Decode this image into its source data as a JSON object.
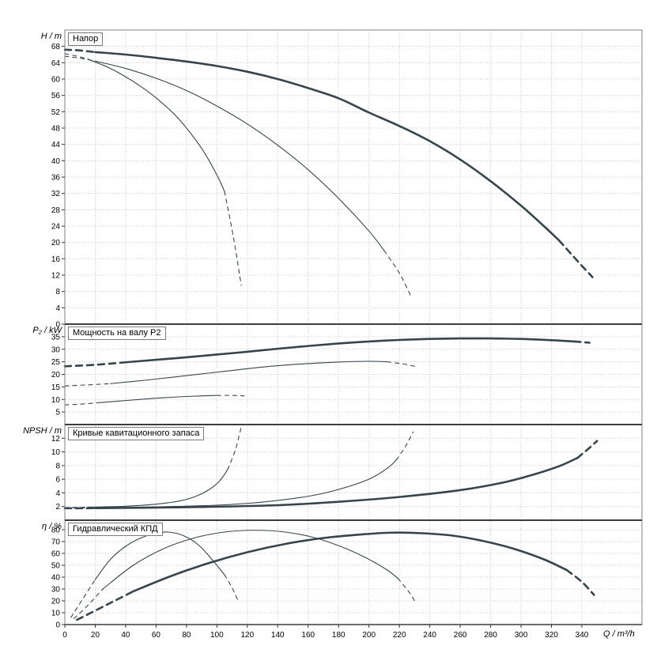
{
  "colors": {
    "curve": "#36454c",
    "grid": "#c9c9c9",
    "axis_border": "#808080",
    "divider": "#3c3c3c",
    "tick": "#333333",
    "text": "#000000",
    "background": "#ffffff"
  },
  "x_axis": {
    "label": "Q / m³/h",
    "lim": [
      0,
      380
    ],
    "ticks": [
      0,
      20,
      40,
      60,
      80,
      100,
      120,
      140,
      160,
      180,
      200,
      220,
      240,
      260,
      280,
      300,
      320,
      340
    ]
  },
  "chart_data": [
    {
      "type": "line",
      "title": "Напор",
      "ylabel": "H / m",
      "ylim": [
        0,
        72
      ],
      "yticks": [
        0,
        4,
        8,
        12,
        16,
        20,
        24,
        28,
        32,
        36,
        40,
        44,
        48,
        52,
        56,
        60,
        64,
        68
      ],
      "grid": true,
      "series": [
        {
          "name": "head-curve-3-lead",
          "style": "thick-dash",
          "points": [
            [
              0,
              67.2
            ],
            [
              10,
              67.0
            ],
            [
              20,
              66.6
            ]
          ]
        },
        {
          "name": "head-curve-3",
          "style": "thick",
          "points": [
            [
              20,
              66.6
            ],
            [
              40,
              66.0
            ],
            [
              60,
              65.2
            ],
            [
              80,
              64.3
            ],
            [
              100,
              63.2
            ],
            [
              120,
              61.8
            ],
            [
              140,
              60.0
            ],
            [
              160,
              57.8
            ],
            [
              180,
              55.3
            ],
            [
              200,
              51.8
            ],
            [
              220,
              48.5
            ],
            [
              240,
              44.8
            ],
            [
              260,
              40.3
            ],
            [
              280,
              35.0
            ],
            [
              300,
              29.0
            ],
            [
              315,
              24.0
            ],
            [
              325,
              20.5
            ]
          ]
        },
        {
          "name": "head-curve-3-tail",
          "style": "thick-dash",
          "points": [
            [
              325,
              20.5
            ],
            [
              337,
              15.5
            ],
            [
              347,
              11.5
            ]
          ]
        },
        {
          "name": "head-curve-2-lead",
          "style": "thin-dash",
          "points": [
            [
              0,
              65.6
            ],
            [
              10,
              65.1
            ],
            [
              20,
              64.4
            ]
          ]
        },
        {
          "name": "head-curve-2",
          "style": "thin",
          "points": [
            [
              20,
              64.4
            ],
            [
              40,
              62.6
            ],
            [
              60,
              60.2
            ],
            [
              80,
              57.2
            ],
            [
              100,
              53.4
            ],
            [
              120,
              49.0
            ],
            [
              140,
              43.8
            ],
            [
              160,
              37.8
            ],
            [
              180,
              30.8
            ],
            [
              200,
              22.8
            ],
            [
              210,
              18.0
            ]
          ]
        },
        {
          "name": "head-curve-2-tail",
          "style": "thin-dash",
          "points": [
            [
              210,
              18.0
            ],
            [
              220,
              12.5
            ],
            [
              228,
              6.5
            ]
          ]
        },
        {
          "name": "head-curve-1-lead",
          "style": "thin-dash",
          "points": [
            [
              0,
              66.2
            ],
            [
              8,
              65.6
            ],
            [
              15,
              64.9
            ]
          ]
        },
        {
          "name": "head-curve-1",
          "style": "thin",
          "points": [
            [
              15,
              64.9
            ],
            [
              30,
              62.6
            ],
            [
              45,
              59.4
            ],
            [
              60,
              55.4
            ],
            [
              75,
              50.2
            ],
            [
              90,
              43.0
            ],
            [
              100,
              36.5
            ],
            [
              105,
              32.5
            ]
          ]
        },
        {
          "name": "head-curve-1-tail",
          "style": "thin-dash",
          "points": [
            [
              105,
              32.5
            ],
            [
              111,
              21.0
            ],
            [
              116,
              9.5
            ]
          ]
        }
      ]
    },
    {
      "type": "line",
      "title": "Мощность на валу P2",
      "ylabel": "P₂ / kW",
      "ylim": [
        0,
        40
      ],
      "yticks": [
        5,
        10,
        15,
        20,
        25,
        30,
        35
      ],
      "grid": true,
      "series": [
        {
          "name": "power-curve-3-lead",
          "style": "thick-dash",
          "points": [
            [
              0,
              23.2
            ],
            [
              20,
              23.8
            ],
            [
              40,
              24.8
            ]
          ]
        },
        {
          "name": "power-curve-3",
          "style": "thick",
          "points": [
            [
              40,
              24.8
            ],
            [
              60,
              25.8
            ],
            [
              80,
              26.8
            ],
            [
              100,
              27.9
            ],
            [
              120,
              29.0
            ],
            [
              140,
              30.2
            ],
            [
              160,
              31.3
            ],
            [
              180,
              32.3
            ],
            [
              200,
              33.1
            ],
            [
              220,
              33.7
            ],
            [
              240,
              34.1
            ],
            [
              260,
              34.3
            ],
            [
              280,
              34.3
            ],
            [
              300,
              34.1
            ],
            [
              320,
              33.6
            ],
            [
              335,
              33.1
            ]
          ]
        },
        {
          "name": "power-curve-3-tail",
          "style": "thick-dash",
          "points": [
            [
              335,
              33.1
            ],
            [
              345,
              32.6
            ]
          ]
        },
        {
          "name": "power-curve-2-lead",
          "style": "thin-dash",
          "points": [
            [
              0,
              15.4
            ],
            [
              15,
              15.8
            ],
            [
              30,
              16.3
            ]
          ]
        },
        {
          "name": "power-curve-2",
          "style": "thin",
          "points": [
            [
              30,
              16.3
            ],
            [
              55,
              17.8
            ],
            [
              80,
              19.5
            ],
            [
              105,
              21.2
            ],
            [
              130,
              22.9
            ],
            [
              155,
              24.1
            ],
            [
              180,
              24.9
            ],
            [
              200,
              25.2
            ],
            [
              212,
              25.0
            ]
          ]
        },
        {
          "name": "power-curve-2-tail",
          "style": "thin-dash",
          "points": [
            [
              212,
              25.0
            ],
            [
              222,
              24.2
            ],
            [
              230,
              23.2
            ]
          ]
        },
        {
          "name": "power-curve-1-lead",
          "style": "thin-dash",
          "points": [
            [
              0,
              7.8
            ],
            [
              12,
              8.2
            ],
            [
              22,
              8.7
            ]
          ]
        },
        {
          "name": "power-curve-1",
          "style": "thin",
          "points": [
            [
              22,
              8.7
            ],
            [
              45,
              9.8
            ],
            [
              65,
              10.7
            ],
            [
              85,
              11.3
            ],
            [
              100,
              11.6
            ]
          ]
        },
        {
          "name": "power-curve-1-tail",
          "style": "thin-dash",
          "points": [
            [
              100,
              11.6
            ],
            [
              110,
              11.6
            ],
            [
              118,
              11.4
            ]
          ]
        }
      ]
    },
    {
      "type": "line",
      "title": "Кривые кавитационного запаса",
      "ylabel": "NPSH / m",
      "ylim": [
        0,
        14
      ],
      "yticks": [
        2,
        4,
        6,
        8,
        10,
        12
      ],
      "grid": true,
      "series": [
        {
          "name": "npsh-curve-1-lead",
          "style": "thin-dash",
          "points": [
            [
              0,
              1.85
            ],
            [
              8,
              1.87
            ],
            [
              15,
              1.9
            ]
          ]
        },
        {
          "name": "npsh-curve-1",
          "style": "thin",
          "points": [
            [
              15,
              1.9
            ],
            [
              40,
              2.05
            ],
            [
              60,
              2.35
            ],
            [
              75,
              2.8
            ],
            [
              85,
              3.4
            ],
            [
              95,
              4.5
            ],
            [
              102,
              5.8
            ],
            [
              107,
              7.4
            ]
          ]
        },
        {
          "name": "npsh-curve-1-tail",
          "style": "thin-dash",
          "points": [
            [
              107,
              7.4
            ],
            [
              112,
              10.2
            ],
            [
              116,
              13.6
            ]
          ]
        },
        {
          "name": "npsh-curve-2-lead",
          "style": "thin-dash",
          "points": [
            [
              0,
              1.8
            ],
            [
              10,
              1.8
            ],
            [
              20,
              1.82
            ]
          ]
        },
        {
          "name": "npsh-curve-2",
          "style": "thin",
          "points": [
            [
              20,
              1.82
            ],
            [
              60,
              1.95
            ],
            [
              100,
              2.2
            ],
            [
              130,
              2.65
            ],
            [
              160,
              3.5
            ],
            [
              180,
              4.5
            ],
            [
              200,
              6.0
            ],
            [
              212,
              7.6
            ],
            [
              218,
              8.8
            ]
          ]
        },
        {
          "name": "npsh-curve-2-tail",
          "style": "thin-dash",
          "points": [
            [
              218,
              8.8
            ],
            [
              224,
              10.8
            ],
            [
              229,
              12.9
            ]
          ]
        },
        {
          "name": "npsh-curve-3-lead",
          "style": "thick-dash",
          "points": [
            [
              0,
              1.75
            ],
            [
              10,
              1.75
            ],
            [
              20,
              1.77
            ]
          ]
        },
        {
          "name": "npsh-curve-3",
          "style": "thick",
          "points": [
            [
              20,
              1.77
            ],
            [
              80,
              1.9
            ],
            [
              140,
              2.2
            ],
            [
              180,
              2.7
            ],
            [
              220,
              3.4
            ],
            [
              260,
              4.4
            ],
            [
              290,
              5.6
            ],
            [
              310,
              6.8
            ],
            [
              325,
              7.9
            ],
            [
              337,
              9.1
            ]
          ]
        },
        {
          "name": "npsh-curve-3-tail",
          "style": "thick-dash",
          "points": [
            [
              337,
              9.1
            ],
            [
              344,
              10.4
            ],
            [
              350,
              11.6
            ]
          ]
        }
      ]
    },
    {
      "type": "line",
      "title": "Гидравлический КПД",
      "ylabel": "η / %",
      "ylim": [
        0,
        88
      ],
      "yticks": [
        0,
        10,
        20,
        30,
        40,
        50,
        60,
        70,
        80
      ],
      "grid": true,
      "series": [
        {
          "name": "eff-curve-1-lead",
          "style": "thin-dash",
          "points": [
            [
              4,
              6
            ],
            [
              12,
              22
            ],
            [
              20,
              38
            ]
          ]
        },
        {
          "name": "eff-curve-1",
          "style": "thin",
          "points": [
            [
              20,
              38
            ],
            [
              30,
              55
            ],
            [
              40,
              66
            ],
            [
              50,
              73
            ],
            [
              60,
              77
            ],
            [
              68,
              78
            ],
            [
              78,
              75
            ],
            [
              88,
              67
            ],
            [
              98,
              53
            ],
            [
              105,
              42
            ]
          ]
        },
        {
          "name": "eff-curve-1-tail",
          "style": "thin-dash",
          "points": [
            [
              105,
              42
            ],
            [
              110,
              31
            ],
            [
              114,
              20
            ]
          ]
        },
        {
          "name": "eff-curve-2-lead",
          "style": "thin-dash",
          "points": [
            [
              6,
              5
            ],
            [
              15,
              16
            ],
            [
              25,
              30
            ]
          ]
        },
        {
          "name": "eff-curve-2",
          "style": "thin",
          "points": [
            [
              25,
              30
            ],
            [
              45,
              50
            ],
            [
              65,
              64
            ],
            [
              85,
              73
            ],
            [
              105,
              78
            ],
            [
              125,
              79.5
            ],
            [
              145,
              78
            ],
            [
              165,
              73
            ],
            [
              185,
              64
            ],
            [
              200,
              55
            ],
            [
              212,
              46
            ],
            [
              219,
              39
            ]
          ]
        },
        {
          "name": "eff-curve-2-tail",
          "style": "thin-dash",
          "points": [
            [
              219,
              39
            ],
            [
              226,
              28
            ],
            [
              230,
              20
            ]
          ]
        },
        {
          "name": "eff-curve-3-lead",
          "style": "thick-dash",
          "points": [
            [
              8,
              4
            ],
            [
              25,
              15
            ],
            [
              45,
              28
            ]
          ]
        },
        {
          "name": "eff-curve-3",
          "style": "thick",
          "points": [
            [
              45,
              28
            ],
            [
              70,
              41
            ],
            [
              95,
              52
            ],
            [
              120,
              61
            ],
            [
              145,
              68
            ],
            [
              170,
              73
            ],
            [
              195,
              76
            ],
            [
              215,
              77.5
            ],
            [
              235,
              77
            ],
            [
              255,
              75
            ],
            [
              275,
              70.5
            ],
            [
              295,
              64
            ],
            [
              315,
              55
            ],
            [
              330,
              46
            ]
          ]
        },
        {
          "name": "eff-curve-3-tail",
          "style": "thick-dash",
          "points": [
            [
              330,
              46
            ],
            [
              340,
              36
            ],
            [
              348,
              25
            ]
          ]
        }
      ]
    }
  ]
}
